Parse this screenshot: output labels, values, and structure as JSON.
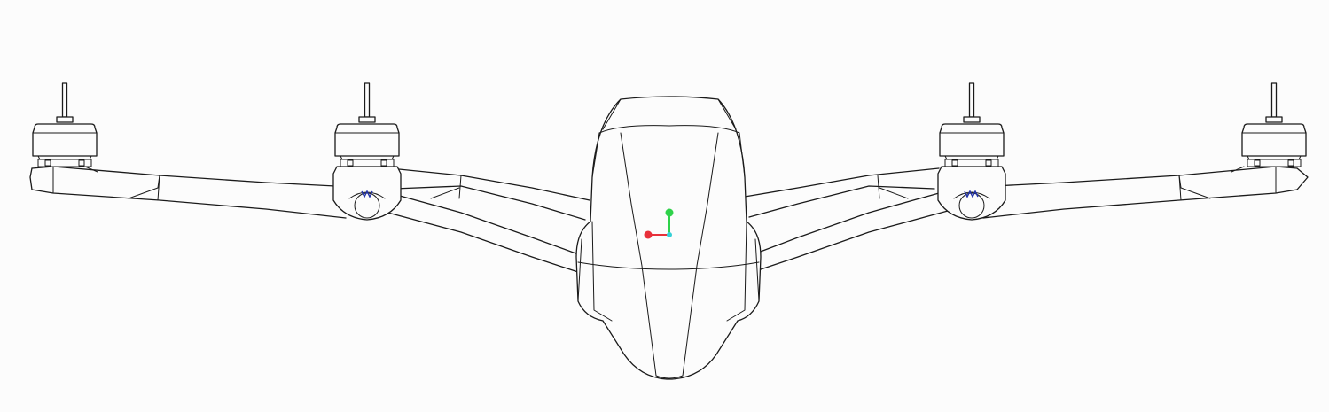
{
  "viewport": {
    "background": "#fcfcfc",
    "line_color": "#1a1a1a"
  },
  "gizmo": {
    "x_axis_color": "#e8303a",
    "y_axis_color": "#2fd24a",
    "z_axis_color": "#34d0d6"
  },
  "motor_count": 4
}
